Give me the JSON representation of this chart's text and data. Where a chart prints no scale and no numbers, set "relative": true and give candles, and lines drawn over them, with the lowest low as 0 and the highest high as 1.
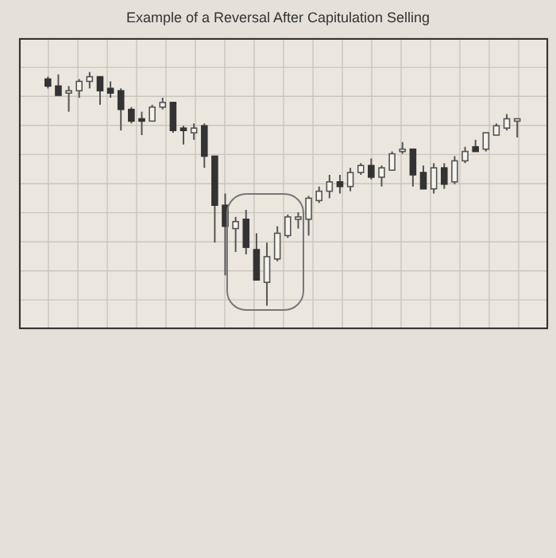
{
  "chart_data": {
    "type": "candlestick",
    "title": "Example of a Reversal After Capitulation Selling",
    "relative": true,
    "grid": true,
    "colors": [
      "#333333",
      "#333333",
      "#f5f3ee",
      "#f5f3ee",
      "#f5f3ee",
      "#333333",
      "#333333",
      "#333333",
      "#333333",
      "#333333",
      "#f5f3ee",
      "#f5f3ee",
      "#333333",
      "#333333",
      "#f5f3ee",
      "#333333",
      "#333333",
      "#333333",
      "#f5f3ee",
      "#333333",
      "#333333",
      "#f5f3ee",
      "#f5f3ee",
      "#f5f3ee",
      "#f5f3ee",
      "#f5f3ee",
      "#f5f3ee",
      "#f5f3ee",
      "#333333",
      "#f5f3ee",
      "#f5f3ee",
      "#333333",
      "#f5f3ee",
      "#f5f3ee",
      "#f5f3ee",
      "#333333",
      "#333333",
      "#f5f3ee",
      "#333333",
      "#f5f3ee",
      "#f5f3ee",
      "#333333",
      "#f5f3ee",
      "#f5f3ee",
      "#f5f3ee",
      "#f5f3ee"
    ],
    "categories": [
      null,
      null,
      null,
      null,
      null,
      null,
      null,
      null,
      null,
      null,
      null,
      null,
      null,
      null,
      null,
      null,
      null,
      null,
      null,
      null,
      null,
      null,
      null,
      null,
      null,
      null,
      null,
      null,
      null,
      null,
      null,
      null,
      null,
      null,
      null,
      null,
      null,
      null,
      null,
      null,
      null,
      null,
      null,
      null,
      null,
      null
    ],
    "ohlc": [
      [
        0.97,
        0.98,
        0.93,
        0.94
      ],
      [
        0.94,
        0.99,
        0.9,
        0.9
      ],
      [
        0.91,
        0.94,
        0.83,
        0.92
      ],
      [
        0.92,
        0.97,
        0.89,
        0.96
      ],
      [
        0.96,
        1.0,
        0.93,
        0.98
      ],
      [
        0.98,
        0.98,
        0.86,
        0.92
      ],
      [
        0.93,
        0.96,
        0.89,
        0.91
      ],
      [
        0.92,
        0.93,
        0.75,
        0.84
      ],
      [
        0.84,
        0.85,
        0.78,
        0.79
      ],
      [
        0.8,
        0.83,
        0.73,
        0.79
      ],
      [
        0.79,
        0.86,
        0.79,
        0.85
      ],
      [
        0.85,
        0.89,
        0.84,
        0.87
      ],
      [
        0.87,
        0.87,
        0.74,
        0.75
      ],
      [
        0.76,
        0.77,
        0.69,
        0.75
      ],
      [
        0.74,
        0.78,
        0.71,
        0.76
      ],
      [
        0.77,
        0.78,
        0.59,
        0.64
      ],
      [
        0.64,
        0.64,
        0.27,
        0.43
      ],
      [
        0.43,
        0.48,
        0.13,
        0.34
      ],
      [
        0.33,
        0.38,
        0.23,
        0.36
      ],
      [
        0.37,
        0.41,
        0.22,
        0.25
      ],
      [
        0.24,
        0.31,
        0.11,
        0.11
      ],
      [
        0.1,
        0.27,
        0.0,
        0.21
      ],
      [
        0.2,
        0.34,
        0.19,
        0.31
      ],
      [
        0.3,
        0.39,
        0.29,
        0.38
      ],
      [
        0.37,
        0.4,
        0.33,
        0.38
      ],
      [
        0.37,
        0.47,
        0.3,
        0.46
      ],
      [
        0.45,
        0.51,
        0.44,
        0.49
      ],
      [
        0.49,
        0.56,
        0.46,
        0.53
      ],
      [
        0.53,
        0.56,
        0.48,
        0.51
      ],
      [
        0.51,
        0.59,
        0.49,
        0.57
      ],
      [
        0.57,
        0.61,
        0.56,
        0.6
      ],
      [
        0.6,
        0.63,
        0.54,
        0.55
      ],
      [
        0.55,
        0.6,
        0.51,
        0.59
      ],
      [
        0.58,
        0.66,
        0.58,
        0.65
      ],
      [
        0.66,
        0.7,
        0.65,
        0.67
      ],
      [
        0.67,
        0.67,
        0.51,
        0.56
      ],
      [
        0.57,
        0.6,
        0.5,
        0.5
      ],
      [
        0.5,
        0.61,
        0.48,
        0.59
      ],
      [
        0.59,
        0.61,
        0.5,
        0.52
      ],
      [
        0.53,
        0.64,
        0.52,
        0.62
      ],
      [
        0.62,
        0.68,
        0.61,
        0.66
      ],
      [
        0.68,
        0.71,
        0.66,
        0.66
      ],
      [
        0.67,
        0.74,
        0.66,
        0.74
      ],
      [
        0.73,
        0.78,
        0.73,
        0.77
      ],
      [
        0.76,
        0.82,
        0.75,
        0.8
      ],
      [
        0.79,
        0.8,
        0.72,
        0.8
      ]
    ]
  }
}
